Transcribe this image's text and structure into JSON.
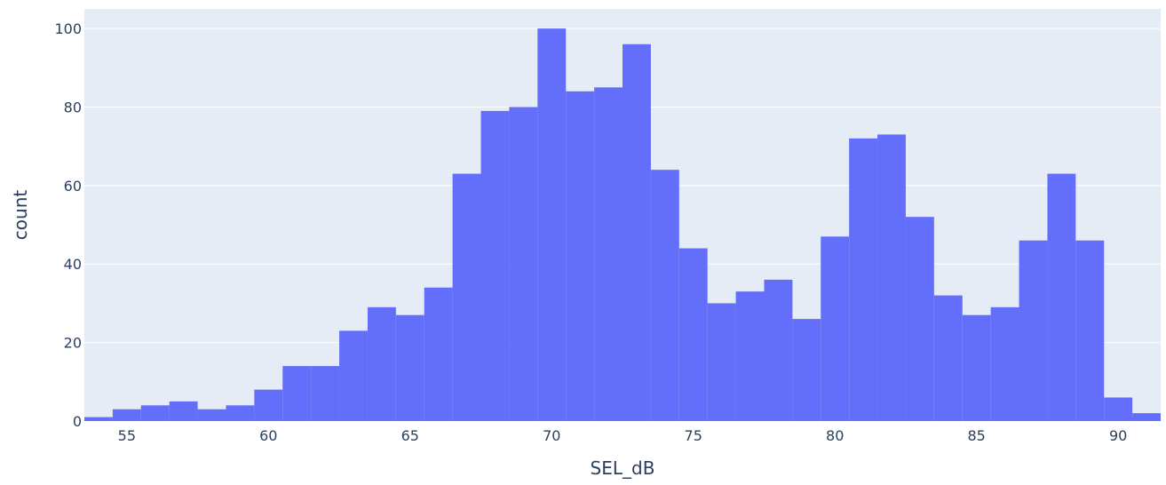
{
  "chart_data": {
    "type": "bar",
    "title": "",
    "xlabel": "SEL_dB",
    "ylabel": "count",
    "xlim": [
      53.5,
      91.5
    ],
    "ylim": [
      0,
      105
    ],
    "grid": true,
    "legend": "none",
    "bin_width": 1,
    "bins_start": [
      53.5,
      54.5,
      55.5,
      56.5,
      57.5,
      58.5,
      59.5,
      60.5,
      61.5,
      62.5,
      63.5,
      64.5,
      65.5,
      66.5,
      67.5,
      68.5,
      69.5,
      70.5,
      71.5,
      72.5,
      73.5,
      74.5,
      75.5,
      76.5,
      77.5,
      78.5,
      79.5,
      80.5,
      81.5,
      82.5,
      83.5,
      84.5,
      85.5,
      86.5,
      87.5,
      88.5,
      89.5,
      90.5
    ],
    "values": [
      1,
      3,
      4,
      5,
      3,
      4,
      8,
      14,
      14,
      23,
      29,
      27,
      34,
      63,
      79,
      80,
      100,
      84,
      85,
      96,
      64,
      44,
      30,
      33,
      36,
      26,
      47,
      72,
      73,
      52,
      32,
      27,
      29,
      46,
      63,
      46,
      6,
      2
    ],
    "x_ticks": [
      55,
      60,
      65,
      70,
      75,
      80,
      85,
      90
    ],
    "x_tick_labels": [
      "55",
      "60",
      "65",
      "70",
      "75",
      "80",
      "85",
      "90"
    ],
    "y_ticks": [
      0,
      20,
      40,
      60,
      80,
      100
    ],
    "y_tick_labels": [
      "0",
      "20",
      "40",
      "60",
      "80",
      "100"
    ],
    "colors": {
      "bar": "#636efa",
      "plot_bg": "#e5ecf6",
      "grid": "#ffffff",
      "text": "#2a3f5f"
    }
  }
}
